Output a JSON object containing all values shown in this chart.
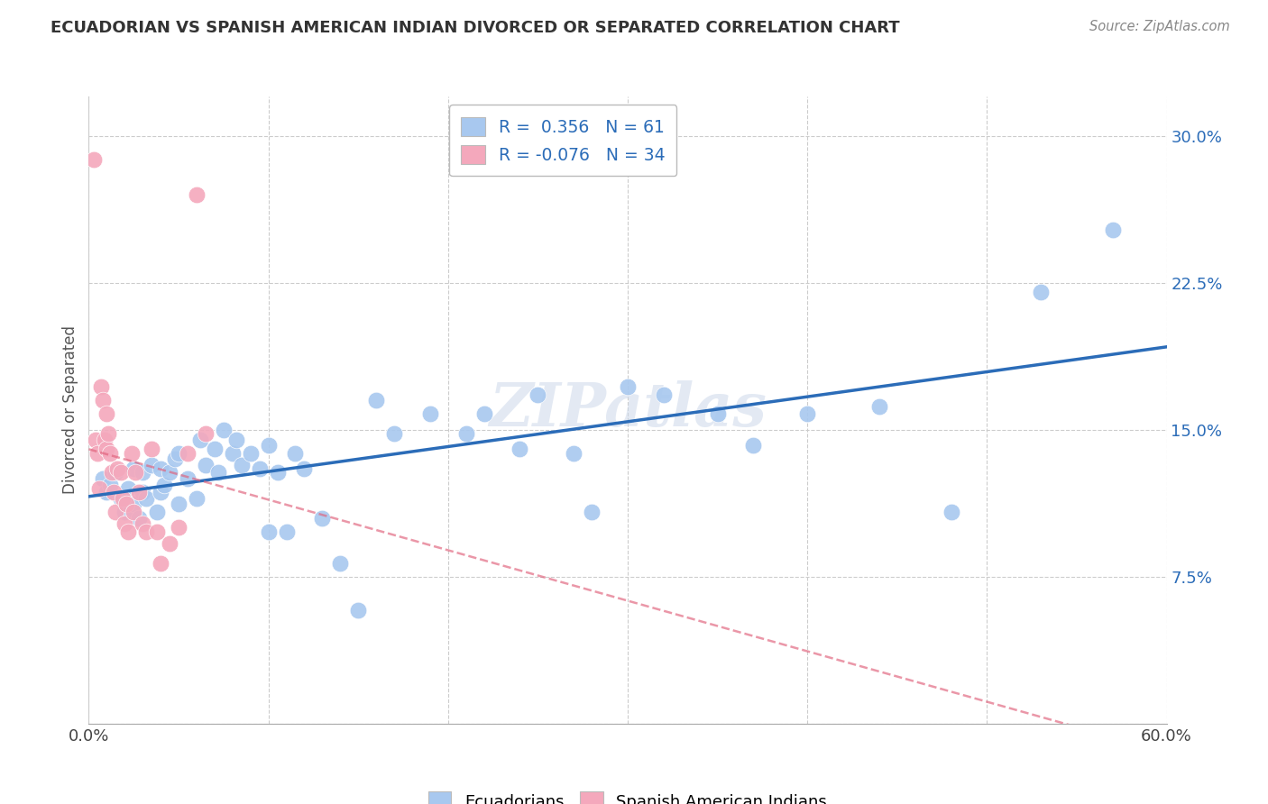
{
  "title": "ECUADORIAN VS SPANISH AMERICAN INDIAN DIVORCED OR SEPARATED CORRELATION CHART",
  "source": "Source: ZipAtlas.com",
  "ylabel": "Divorced or Separated",
  "xlim": [
    0.0,
    0.6
  ],
  "ylim": [
    0.0,
    0.32
  ],
  "xticks": [
    0.0,
    0.1,
    0.2,
    0.3,
    0.4,
    0.5,
    0.6
  ],
  "xticklabels": [
    "0.0%",
    "",
    "",
    "",
    "",
    "",
    "60.0%"
  ],
  "yticks": [
    0.0,
    0.075,
    0.15,
    0.225,
    0.3
  ],
  "yticklabels": [
    "",
    "7.5%",
    "15.0%",
    "22.5%",
    "30.0%"
  ],
  "background_color": "#ffffff",
  "grid_color": "#cccccc",
  "blue_color": "#a8c8ef",
  "pink_color": "#f4a8bc",
  "blue_line_color": "#2b6cb8",
  "pink_line_color": "#e0607a",
  "watermark": "ZIPatlas",
  "legend_R_blue": "0.356",
  "legend_N_blue": "61",
  "legend_R_pink": "-0.076",
  "legend_N_pink": "34",
  "legend_label_blue": "Ecuadorians",
  "legend_label_pink": "Spanish American Indians",
  "blue_points_x": [
    0.008,
    0.01,
    0.012,
    0.015,
    0.018,
    0.02,
    0.022,
    0.025,
    0.025,
    0.028,
    0.03,
    0.03,
    0.032,
    0.035,
    0.038,
    0.04,
    0.04,
    0.042,
    0.045,
    0.048,
    0.05,
    0.05,
    0.055,
    0.06,
    0.062,
    0.065,
    0.07,
    0.072,
    0.075,
    0.08,
    0.082,
    0.085,
    0.09,
    0.095,
    0.1,
    0.1,
    0.105,
    0.11,
    0.115,
    0.12,
    0.13,
    0.14,
    0.15,
    0.16,
    0.17,
    0.19,
    0.21,
    0.22,
    0.24,
    0.25,
    0.27,
    0.28,
    0.3,
    0.32,
    0.35,
    0.37,
    0.4,
    0.44,
    0.48,
    0.53,
    0.57
  ],
  "blue_points_y": [
    0.125,
    0.118,
    0.122,
    0.128,
    0.115,
    0.108,
    0.12,
    0.112,
    0.13,
    0.105,
    0.118,
    0.128,
    0.115,
    0.132,
    0.108,
    0.118,
    0.13,
    0.122,
    0.128,
    0.135,
    0.112,
    0.138,
    0.125,
    0.115,
    0.145,
    0.132,
    0.14,
    0.128,
    0.15,
    0.138,
    0.145,
    0.132,
    0.138,
    0.13,
    0.098,
    0.142,
    0.128,
    0.098,
    0.138,
    0.13,
    0.105,
    0.082,
    0.058,
    0.165,
    0.148,
    0.158,
    0.148,
    0.158,
    0.14,
    0.168,
    0.138,
    0.108,
    0.172,
    0.168,
    0.158,
    0.142,
    0.158,
    0.162,
    0.108,
    0.22,
    0.252
  ],
  "pink_points_x": [
    0.003,
    0.004,
    0.005,
    0.006,
    0.007,
    0.008,
    0.009,
    0.01,
    0.01,
    0.011,
    0.012,
    0.013,
    0.014,
    0.015,
    0.016,
    0.018,
    0.019,
    0.02,
    0.021,
    0.022,
    0.024,
    0.025,
    0.026,
    0.028,
    0.03,
    0.032,
    0.035,
    0.038,
    0.04,
    0.045,
    0.05,
    0.055,
    0.06,
    0.065
  ],
  "pink_points_y": [
    0.288,
    0.145,
    0.138,
    0.12,
    0.172,
    0.165,
    0.145,
    0.158,
    0.14,
    0.148,
    0.138,
    0.128,
    0.118,
    0.108,
    0.13,
    0.128,
    0.115,
    0.102,
    0.112,
    0.098,
    0.138,
    0.108,
    0.128,
    0.118,
    0.102,
    0.098,
    0.14,
    0.098,
    0.082,
    0.092,
    0.1,
    0.138,
    0.27,
    0.148
  ]
}
